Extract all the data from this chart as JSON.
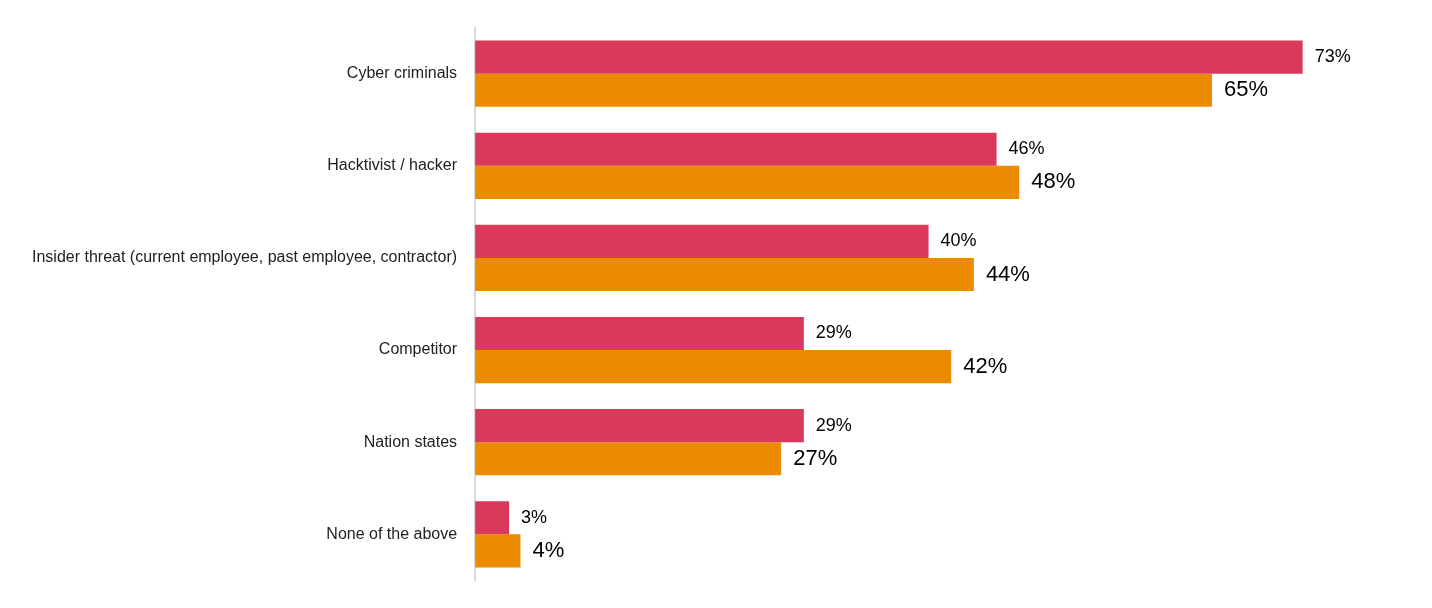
{
  "chart_data": {
    "type": "bar",
    "orientation": "horizontal",
    "categories": [
      "Cyber criminals",
      "Hacktivist / hacker",
      "Insider threat (current employee, past employee, contractor)",
      "Competitor",
      "Nation states",
      "None of the above"
    ],
    "series": [
      {
        "color": "#d9395a",
        "values": [
          73,
          46,
          40,
          29,
          29,
          3
        ],
        "value_labels": [
          "73%",
          "46%",
          "40%",
          "29%",
          "29%",
          "3%"
        ]
      },
      {
        "color": "#eb8c00",
        "values": [
          65,
          48,
          44,
          42,
          27,
          4
        ],
        "value_labels": [
          "65%",
          "48%",
          "44%",
          "42%",
          "27%",
          "4%"
        ]
      }
    ],
    "legend": false,
    "tick_labels": "y"
  }
}
